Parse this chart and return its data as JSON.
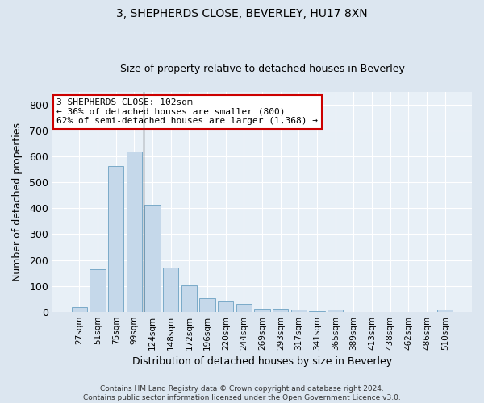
{
  "title1": "3, SHEPHERDS CLOSE, BEVERLEY, HU17 8XN",
  "title2": "Size of property relative to detached houses in Beverley",
  "xlabel": "Distribution of detached houses by size in Beverley",
  "ylabel": "Number of detached properties",
  "categories": [
    "27sqm",
    "51sqm",
    "75sqm",
    "99sqm",
    "124sqm",
    "148sqm",
    "172sqm",
    "196sqm",
    "220sqm",
    "244sqm",
    "269sqm",
    "293sqm",
    "317sqm",
    "341sqm",
    "365sqm",
    "389sqm",
    "413sqm",
    "438sqm",
    "462sqm",
    "486sqm",
    "510sqm"
  ],
  "values": [
    18,
    165,
    562,
    620,
    413,
    172,
    103,
    51,
    38,
    30,
    13,
    12,
    9,
    2,
    7,
    0,
    0,
    0,
    0,
    0,
    7
  ],
  "bar_color": "#c5d8ea",
  "bar_edge_color": "#7aaac8",
  "highlight_bar_index": 3,
  "vline_x": 3.5,
  "ylim": [
    0,
    850
  ],
  "yticks": [
    0,
    100,
    200,
    300,
    400,
    500,
    600,
    700,
    800
  ],
  "annotation_line1": "3 SHEPHERDS CLOSE: 102sqm",
  "annotation_line2": "← 36% of detached houses are smaller (800)",
  "annotation_line3": "62% of semi-detached houses are larger (1,368) →",
  "annotation_box_color": "#ffffff",
  "annotation_box_edge_color": "#cc0000",
  "footer1": "Contains HM Land Registry data © Crown copyright and database right 2024.",
  "footer2": "Contains public sector information licensed under the Open Government Licence v3.0.",
  "bg_color": "#dce6f0",
  "plot_bg_color": "#e8f0f7",
  "title1_fontsize": 10,
  "title2_fontsize": 9,
  "ylabel_fontsize": 9,
  "xlabel_fontsize": 9,
  "annotation_fontsize": 8,
  "footer_fontsize": 6.5,
  "ytick_fontsize": 9,
  "xtick_fontsize": 7.5
}
